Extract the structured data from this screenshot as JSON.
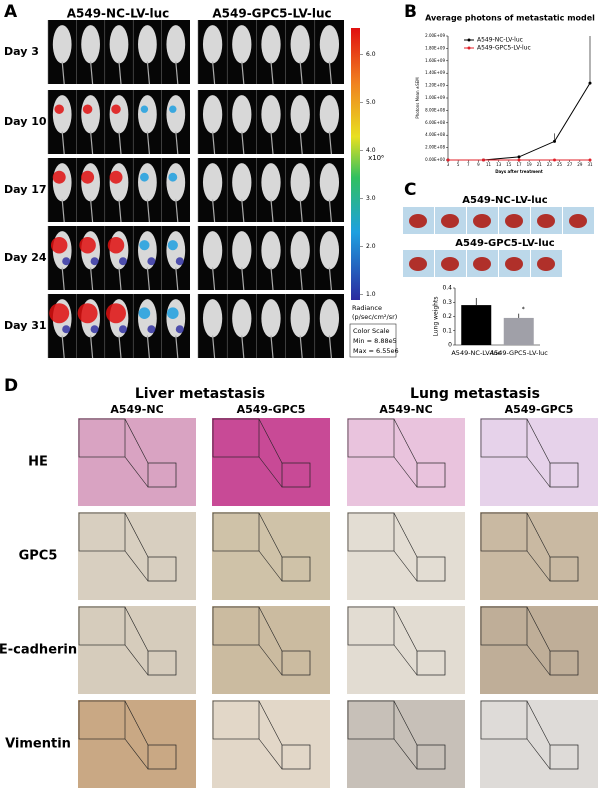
{
  "panel_a": {
    "label": "A",
    "groups": [
      "A549-NC-LV-luc",
      "A549-GPC5-LV-luc"
    ],
    "days": [
      "Day 3",
      "Day 10",
      "Day 17",
      "Day 24",
      "Day 31"
    ],
    "colorbar_ticks": [
      {
        "value": 6,
        "label": "6.0"
      },
      {
        "value": 5,
        "label": "5.0"
      },
      {
        "value": 4,
        "label": "4.0"
      },
      {
        "value": 3,
        "label": "3.0"
      },
      {
        "value": 2,
        "label": "2.0"
      },
      {
        "value": 1,
        "label": "1.0"
      }
    ],
    "colorbar_range": [
      0.888,
      6.55
    ],
    "colorbar_unit": "x10⁶",
    "radiance": "Radiance",
    "radiance_unit": "(p/sec/cm²/sr)",
    "color_scale": "Color Scale",
    "min": "Min = 8.88e5",
    "max": "Max = 6.55e6"
  },
  "panel_b": {
    "label": "B"
  },
  "panel_c": {
    "label": "C",
    "photo_groups": [
      "A549-NC-LV-luc",
      "A549-GPC5-LV-luc"
    ]
  },
  "chart_data": [
    {
      "type": "line",
      "title": "Average photons of metastatic model",
      "x_label": "Days after treatment",
      "y_label": "Photons Mean ±SEM",
      "x": [
        3,
        10,
        17,
        24,
        31
      ],
      "xlim": [
        3,
        31
      ],
      "xticks": [
        3,
        5,
        7,
        9,
        11,
        13,
        15,
        17,
        19,
        21,
        23,
        25,
        27,
        29,
        31
      ],
      "ylim": [
        0,
        2000000000
      ],
      "yticks": [
        {
          "value": 0,
          "label": "0.00E+00"
        },
        {
          "value": 200000000,
          "label": "2.00E+08"
        },
        {
          "value": 400000000,
          "label": "4.00E+08"
        },
        {
          "value": 600000000,
          "label": "6.00E+08"
        },
        {
          "value": 800000000,
          "label": "8.00E+08"
        },
        {
          "value": 1000000000,
          "label": "1.00E+09"
        },
        {
          "value": 1200000000,
          "label": "1.20E+09"
        },
        {
          "value": 1400000000,
          "label": "1.40E+09"
        },
        {
          "value": 1600000000,
          "label": "1.60E+09"
        },
        {
          "value": 1800000000,
          "label": "1.80E+09"
        },
        {
          "value": 2000000000,
          "label": "2.00E+09"
        }
      ],
      "series": [
        {
          "name": "A549-NC-LV-luc",
          "color": "#000000",
          "values": [
            0,
            0,
            50000000,
            300000000,
            1240000000
          ],
          "errors": [
            0,
            0,
            20000000,
            130000000,
            760000000
          ]
        },
        {
          "name": "A549-GPC5-LV-luc",
          "color": "#e0202a",
          "values": [
            0,
            0,
            0,
            0,
            0
          ],
          "errors": [
            0,
            0,
            0,
            0,
            0
          ]
        }
      ]
    },
    {
      "type": "bar",
      "y_label": "Lung weights",
      "categories": [
        "A549-NC-LV-luc",
        "A549-GPC5-LV-luc"
      ],
      "values": [
        0.28,
        0.19
      ],
      "errors": [
        0.05,
        0.03
      ],
      "colors": [
        "#000000",
        "#a0a0a8"
      ],
      "ylim": [
        0,
        0.4
      ],
      "yticks": [
        0,
        0.1,
        0.2,
        0.3,
        0.4
      ],
      "annotation": "*"
    }
  ],
  "panel_d": {
    "label": "D",
    "sections": [
      "Liver metastasis",
      "Lung metastasis"
    ],
    "columns": [
      "A549-NC",
      "A549-GPC5",
      "A549-NC",
      "A549-GPC5"
    ],
    "rows": [
      "HE",
      "GPC5",
      "E-cadherin",
      "Vimentin"
    ]
  }
}
